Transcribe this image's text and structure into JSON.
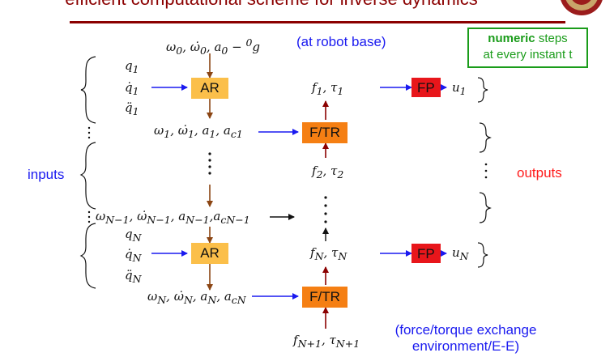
{
  "slide": {
    "title": "efficient computational scheme for inverse dynamics",
    "note_bold": "numeric",
    "note_rest": " steps",
    "note_line2": "at every instant t"
  },
  "labels": {
    "base": "ω0, ω̇0, a0 − 0g",
    "base_note": "(at robot base)",
    "inputs": "inputs",
    "outputs": "outputs",
    "exchange_line1": "(force/torque exchange",
    "exchange_line2": "environment/E-E)"
  },
  "blocks": {
    "ar": "AR",
    "ftr": "F/TR",
    "fp": "FP"
  },
  "vars": {
    "q1": "q1",
    "qd1": "q̇1",
    "qdd1": "q̈1",
    "w1": "ω1, ω̇1, a1, ac1",
    "f1": "f1, τ1",
    "u1": "u1",
    "f2": "f2, τ2",
    "wN1": "ωN−1, ω̇N−1, aN−1, acN−1",
    "qN": "qN",
    "qdN": "q̇N",
    "qddN": "q̈N",
    "fN": "fN, τN",
    "uN": "uN",
    "wN": "ωN, ω̇N, aN, acN",
    "fN1": "fN+1, τN+1"
  },
  "colors": {
    "title": "#8b0000",
    "flow_down": "#8b4513",
    "flow_up": "#8b0000",
    "input_arrow": "#1a1af0",
    "ar": "#fbbf4a",
    "ftr": "#f57f13",
    "fp": "#e8161b",
    "note_border": "#1a9c1a"
  },
  "icons": {
    "seal": "university-seal-icon"
  }
}
